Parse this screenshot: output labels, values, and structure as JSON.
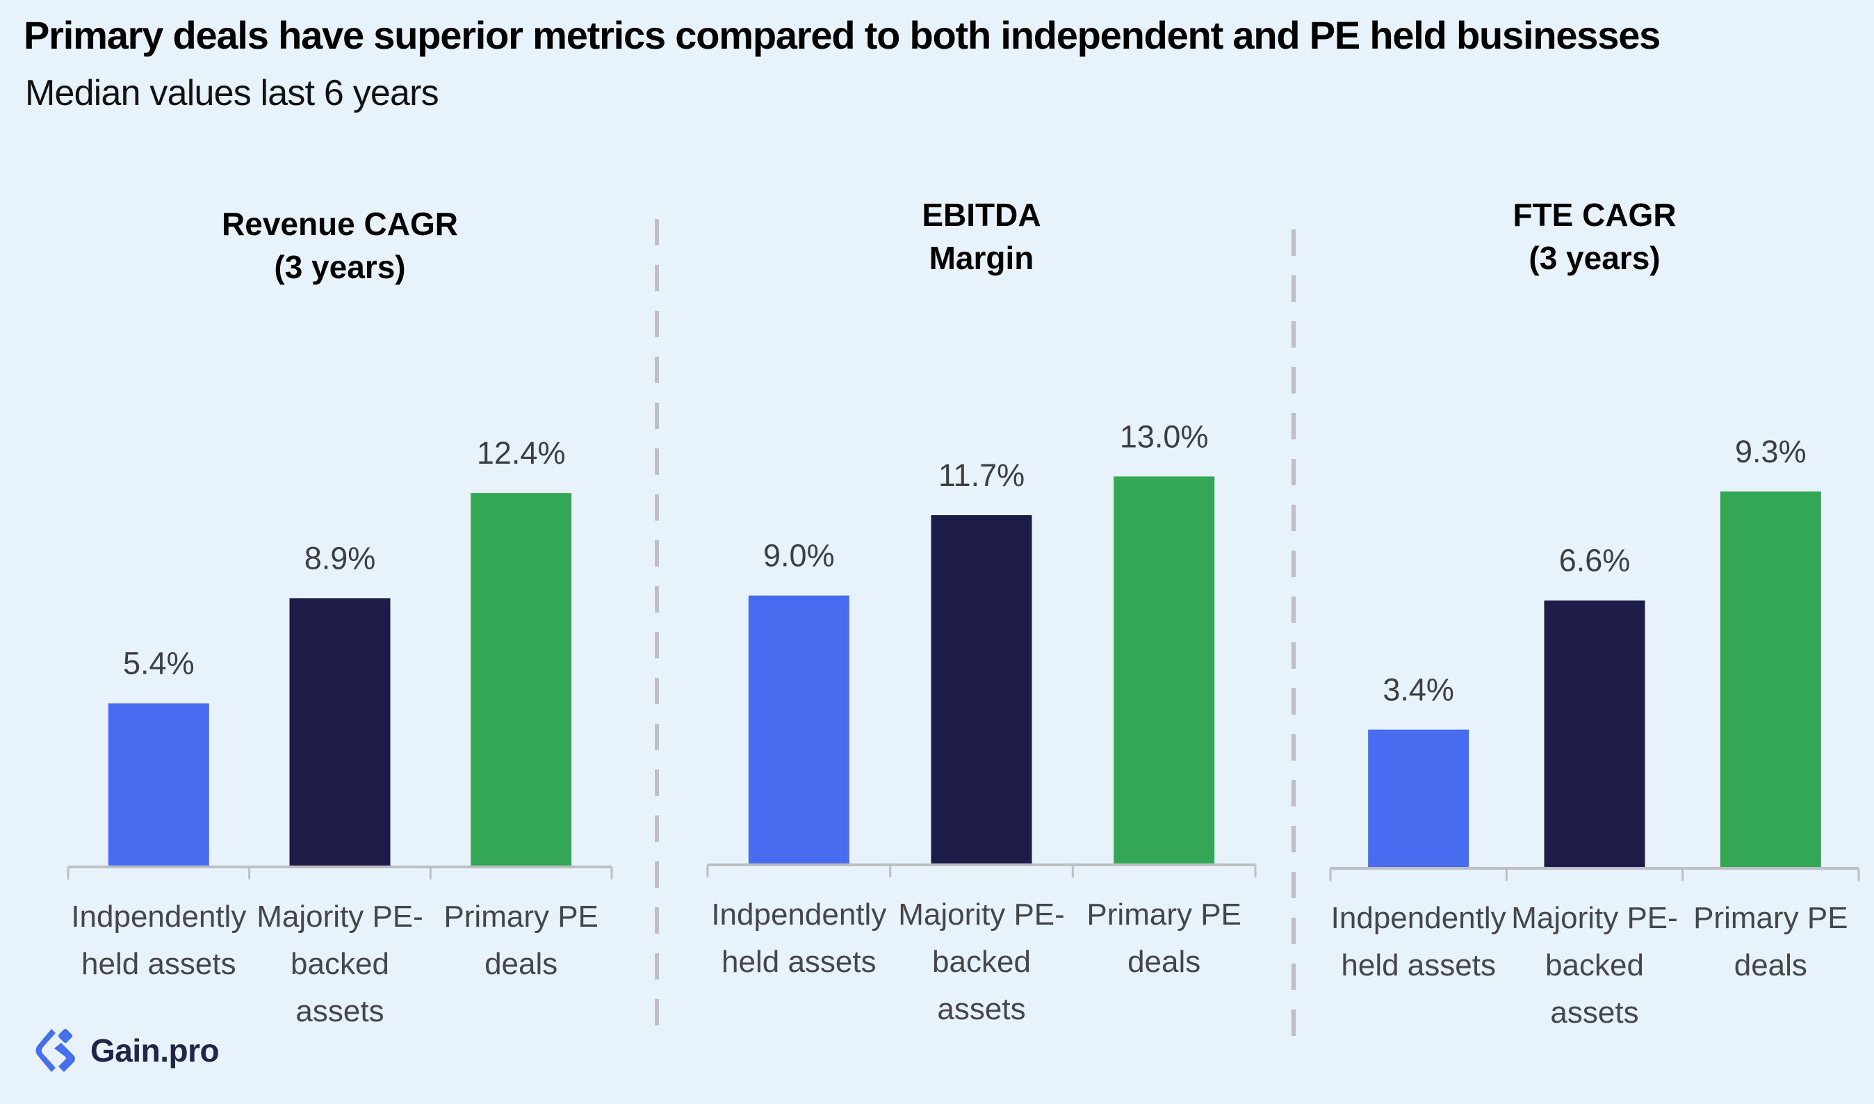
{
  "header": {
    "title": "Primary deals have superior metrics compared to both independent and PE held businesses",
    "subtitle": "Median values last 6 years"
  },
  "logo": {
    "text": "Gain.pro",
    "icon": "gain-pro-logo-icon",
    "color": "#4470f0",
    "text_color": "#22244a"
  },
  "colors": {
    "background": "#e8f2fb",
    "independent": "#476cf0",
    "majority_pe": "#1d1b48",
    "primary_pe": "#33a753",
    "axis": "#bdbfc3",
    "divider": "#bdbfc3",
    "value_label": "#3d3e40",
    "category_label": "#45464a"
  },
  "chart_data": [
    {
      "type": "bar",
      "title": "Revenue CAGR\n(3 years)",
      "title_lines": [
        "Revenue CAGR",
        "(3 years)"
      ],
      "categories": [
        "Indpendently held assets",
        "Majority PE-backed assets",
        "Primary PE deals"
      ],
      "category_lines": [
        [
          "Indpendently",
          "held assets"
        ],
        [
          "Majority PE-",
          "backed",
          "assets"
        ],
        [
          "Primary PE",
          "deals"
        ]
      ],
      "values": [
        5.4,
        8.9,
        12.4
      ],
      "labels": [
        "5.4%",
        "8.9%",
        "12.4%"
      ],
      "unit": "%",
      "xlabel": "",
      "ylabel": "",
      "ylim": [
        0,
        14.0
      ],
      "grid": false
    },
    {
      "type": "bar",
      "title": "EBITDA\nMargin",
      "title_lines": [
        "EBITDA",
        "Margin"
      ],
      "categories": [
        "Indpendently held assets",
        "Majority PE-backed assets",
        "Primary PE deals"
      ],
      "category_lines": [
        [
          "Indpendently",
          "held assets"
        ],
        [
          "Majority PE-",
          "backed",
          "assets"
        ],
        [
          "Primary PE",
          "deals"
        ]
      ],
      "values": [
        9.0,
        11.7,
        13.0
      ],
      "labels": [
        "9.0%",
        "11.7%",
        "13.0%"
      ],
      "unit": "%",
      "xlabel": "",
      "ylabel": "",
      "ylim": [
        0,
        14.2
      ],
      "grid": false
    },
    {
      "type": "bar",
      "title": "FTE CAGR\n(3 years)",
      "title_lines": [
        "FTE CAGR",
        "(3 years)"
      ],
      "categories": [
        "Indpendently held assets",
        "Majority PE-backed assets",
        "Primary PE deals"
      ],
      "category_lines": [
        [
          "Indpendently",
          "held assets"
        ],
        [
          "Majority PE-",
          "backed",
          "assets"
        ],
        [
          "Primary PE",
          "deals"
        ]
      ],
      "values": [
        3.4,
        6.6,
        9.3
      ],
      "labels": [
        "3.4%",
        "6.6%",
        "9.3%"
      ],
      "unit": "%",
      "xlabel": "",
      "ylabel": "",
      "ylim": [
        0,
        10.4
      ],
      "grid": false
    }
  ]
}
